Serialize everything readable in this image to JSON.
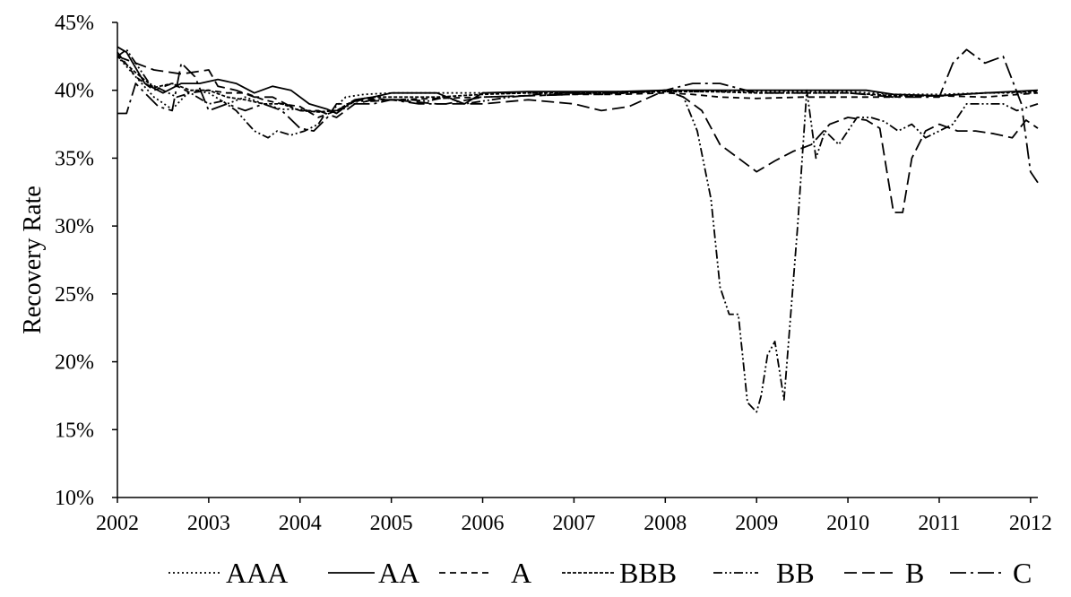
{
  "chart_data": {
    "type": "line",
    "title": "",
    "xlabel": "",
    "ylabel": "Recovery Rate",
    "xlim": [
      2002,
      2012.08
    ],
    "ylim": [
      0.1,
      0.45
    ],
    "x_ticks": [
      {
        "value": 2002,
        "label": "2002"
      },
      {
        "value": 2003,
        "label": "2003"
      },
      {
        "value": 2004,
        "label": "2004"
      },
      {
        "value": 2005,
        "label": "2005"
      },
      {
        "value": 2006,
        "label": "2006"
      },
      {
        "value": 2007,
        "label": "2007"
      },
      {
        "value": 2008,
        "label": "2008"
      },
      {
        "value": 2009,
        "label": "2009"
      },
      {
        "value": 2010,
        "label": "2010"
      },
      {
        "value": 2011,
        "label": "2011"
      },
      {
        "value": 2012,
        "label": "2012"
      }
    ],
    "y_ticks": [
      {
        "value": 0.1,
        "label": "10%"
      },
      {
        "value": 0.15,
        "label": "15%"
      },
      {
        "value": 0.2,
        "label": "20%"
      },
      {
        "value": 0.25,
        "label": "25%"
      },
      {
        "value": 0.3,
        "label": "30%"
      },
      {
        "value": 0.35,
        "label": "35%"
      },
      {
        "value": 0.4,
        "label": "40%"
      },
      {
        "value": 0.45,
        "label": "45%"
      }
    ],
    "grid": false,
    "legend_position": "bottom",
    "series": [
      {
        "name": "AAA",
        "dash": "2,3",
        "x": [
          2002.0,
          2002.2,
          2002.4,
          2002.6,
          2002.8,
          2003.0,
          2003.2,
          2003.4,
          2003.6,
          2003.8,
          2004.0,
          2004.2,
          2004.35,
          2004.5,
          2004.7,
          2005.0,
          2005.5,
          2005.8,
          2006.0,
          2006.5,
          2007.0,
          2007.5,
          2008.0,
          2008.5,
          2009.0,
          2009.5,
          2010.0,
          2010.5,
          2011.0,
          2011.5,
          2012.08
        ],
        "y": [
          0.425,
          0.41,
          0.395,
          0.386,
          0.4,
          0.398,
          0.39,
          0.395,
          0.39,
          0.386,
          0.386,
          0.384,
          0.385,
          0.395,
          0.397,
          0.398,
          0.398,
          0.398,
          0.398,
          0.398,
          0.398,
          0.399,
          0.399,
          0.399,
          0.399,
          0.399,
          0.399,
          0.397,
          0.397,
          0.398,
          0.398
        ]
      },
      {
        "name": "AA",
        "dash": "",
        "x": [
          2002.0,
          2002.1,
          2002.3,
          2002.5,
          2002.7,
          2002.9,
          2003.1,
          2003.3,
          2003.5,
          2003.7,
          2003.9,
          2004.1,
          2004.3,
          2004.4,
          2004.6,
          2004.8,
          2005.0,
          2005.5,
          2005.8,
          2006.0,
          2006.5,
          2007.0,
          2007.5,
          2008.0,
          2008.5,
          2009.0,
          2009.5,
          2010.0,
          2010.2,
          2010.5,
          2011.0,
          2011.5,
          2012.08
        ],
        "y": [
          0.432,
          0.428,
          0.405,
          0.398,
          0.405,
          0.405,
          0.408,
          0.405,
          0.398,
          0.403,
          0.4,
          0.39,
          0.386,
          0.383,
          0.393,
          0.395,
          0.398,
          0.398,
          0.39,
          0.398,
          0.399,
          0.399,
          0.399,
          0.4,
          0.4,
          0.4,
          0.4,
          0.4,
          0.4,
          0.397,
          0.396,
          0.398,
          0.4
        ]
      },
      {
        "name": "A",
        "dash": "7,5",
        "x": [
          2002.0,
          2002.2,
          2002.4,
          2002.6,
          2002.8,
          2003.0,
          2003.2,
          2003.4,
          2003.6,
          2003.8,
          2004.0,
          2004.2,
          2004.4,
          2004.6,
          2004.8,
          2005.0,
          2005.5,
          2006.0,
          2006.5,
          2007.0,
          2007.5,
          2008.0,
          2008.3,
          2008.6,
          2009.0,
          2009.5,
          2010.0,
          2010.5,
          2011.0,
          2011.5,
          2012.08
        ],
        "y": [
          0.428,
          0.41,
          0.4,
          0.405,
          0.398,
          0.4,
          0.398,
          0.398,
          0.393,
          0.39,
          0.388,
          0.38,
          0.385,
          0.392,
          0.394,
          0.393,
          0.394,
          0.395,
          0.396,
          0.397,
          0.397,
          0.398,
          0.397,
          0.395,
          0.394,
          0.395,
          0.395,
          0.395,
          0.396,
          0.395,
          0.398
        ]
      },
      {
        "name": "BBB",
        "dash": "4,2",
        "x": [
          2002.0,
          2002.2,
          2002.4,
          2002.6,
          2002.8,
          2003.0,
          2003.2,
          2003.4,
          2003.6,
          2003.8,
          2004.0,
          2004.2,
          2004.4,
          2004.6,
          2004.8,
          2005.0,
          2005.5,
          2006.0,
          2006.5,
          2007.0,
          2007.5,
          2008.0,
          2008.5,
          2009.0,
          2009.5,
          2010.0,
          2010.5,
          2011.0,
          2011.5,
          2012.08
        ],
        "y": [
          0.425,
          0.413,
          0.402,
          0.405,
          0.4,
          0.4,
          0.395,
          0.393,
          0.39,
          0.39,
          0.385,
          0.384,
          0.385,
          0.393,
          0.395,
          0.395,
          0.395,
          0.397,
          0.398,
          0.398,
          0.398,
          0.399,
          0.399,
          0.398,
          0.398,
          0.398,
          0.396,
          0.396,
          0.398,
          0.399
        ]
      },
      {
        "name": "BB",
        "dash": "10,3,2,3,2,3",
        "x": [
          2002.0,
          2002.1,
          2002.2,
          2002.35,
          2002.5,
          2002.65,
          2002.8,
          2003.0,
          2003.15,
          2003.3,
          2003.5,
          2003.65,
          2003.75,
          2003.9,
          2004.05,
          2004.2,
          2004.3,
          2004.45,
          2004.6,
          2004.8,
          2005.0,
          2005.2,
          2005.4,
          2005.6,
          2005.8,
          2006.0,
          2006.3,
          2006.6,
          2007.0,
          2007.3,
          2007.6,
          2008.0,
          2008.2,
          2008.35,
          2008.5,
          2008.6,
          2008.7,
          2008.8,
          2008.9,
          2009.0,
          2009.05,
          2009.12,
          2009.2,
          2009.3,
          2009.45,
          2009.55,
          2009.65,
          2009.75,
          2009.9,
          2010.0,
          2010.1,
          2010.25,
          2010.4,
          2010.55,
          2010.7,
          2010.85,
          2011.0,
          2011.15,
          2011.3,
          2011.5,
          2011.7,
          2011.85,
          2012.08
        ],
        "y": [
          0.425,
          0.43,
          0.42,
          0.405,
          0.4,
          0.395,
          0.398,
          0.39,
          0.392,
          0.385,
          0.37,
          0.365,
          0.37,
          0.367,
          0.37,
          0.375,
          0.385,
          0.385,
          0.392,
          0.392,
          0.393,
          0.393,
          0.392,
          0.395,
          0.39,
          0.392,
          0.395,
          0.397,
          0.398,
          0.397,
          0.398,
          0.4,
          0.395,
          0.37,
          0.32,
          0.255,
          0.235,
          0.235,
          0.17,
          0.163,
          0.175,
          0.205,
          0.215,
          0.172,
          0.3,
          0.4,
          0.35,
          0.37,
          0.36,
          0.37,
          0.38,
          0.38,
          0.377,
          0.37,
          0.375,
          0.365,
          0.37,
          0.375,
          0.39,
          0.39,
          0.39,
          0.385,
          0.39
        ]
      },
      {
        "name": "B",
        "dash": "14,6",
        "x": [
          2002.0,
          2002.2,
          2002.4,
          2002.7,
          2003.0,
          2003.1,
          2003.3,
          2003.5,
          2003.7,
          2003.9,
          2004.0,
          2004.2,
          2004.4,
          2004.6,
          2004.8,
          2005.0,
          2005.5,
          2006.0,
          2006.5,
          2007.0,
          2007.3,
          2007.6,
          2008.0,
          2008.2,
          2008.4,
          2008.6,
          2008.8,
          2009.0,
          2009.2,
          2009.4,
          2009.6,
          2009.8,
          2010.0,
          2010.2,
          2010.35,
          2010.5,
          2010.6,
          2010.7,
          2010.85,
          2011.0,
          2011.2,
          2011.4,
          2011.6,
          2011.8,
          2011.95,
          2012.08
        ],
        "y": [
          0.425,
          0.42,
          0.415,
          0.412,
          0.415,
          0.403,
          0.4,
          0.395,
          0.395,
          0.388,
          0.385,
          0.385,
          0.38,
          0.39,
          0.393,
          0.393,
          0.39,
          0.39,
          0.393,
          0.39,
          0.385,
          0.388,
          0.4,
          0.395,
          0.385,
          0.36,
          0.35,
          0.34,
          0.348,
          0.355,
          0.36,
          0.375,
          0.38,
          0.378,
          0.372,
          0.31,
          0.31,
          0.35,
          0.37,
          0.375,
          0.37,
          0.37,
          0.368,
          0.365,
          0.378,
          0.372
        ]
      },
      {
        "name": "C",
        "dash": "18,5,3,5",
        "x": [
          2002.0,
          2002.1,
          2002.2,
          2002.3,
          2002.45,
          2002.6,
          2002.7,
          2002.85,
          2003.0,
          2003.2,
          2003.4,
          2003.6,
          2003.8,
          2004.0,
          2004.15,
          2004.3,
          2004.4,
          2004.6,
          2004.8,
          2005.0,
          2005.3,
          2005.6,
          2006.0,
          2006.5,
          2007.0,
          2007.3,
          2007.6,
          2008.0,
          2008.3,
          2008.6,
          2009.0,
          2009.5,
          2010.0,
          2010.5,
          2010.8,
          2011.0,
          2011.15,
          2011.3,
          2011.5,
          2011.7,
          2011.9,
          2012.0,
          2012.08
        ],
        "y": [
          0.383,
          0.383,
          0.405,
          0.398,
          0.388,
          0.385,
          0.42,
          0.41,
          0.385,
          0.39,
          0.385,
          0.39,
          0.385,
          0.372,
          0.37,
          0.38,
          0.39,
          0.39,
          0.39,
          0.393,
          0.39,
          0.39,
          0.395,
          0.396,
          0.397,
          0.398,
          0.398,
          0.4,
          0.405,
          0.405,
          0.398,
          0.398,
          0.398,
          0.395,
          0.395,
          0.395,
          0.42,
          0.43,
          0.42,
          0.425,
          0.39,
          0.34,
          0.332
        ]
      }
    ]
  }
}
